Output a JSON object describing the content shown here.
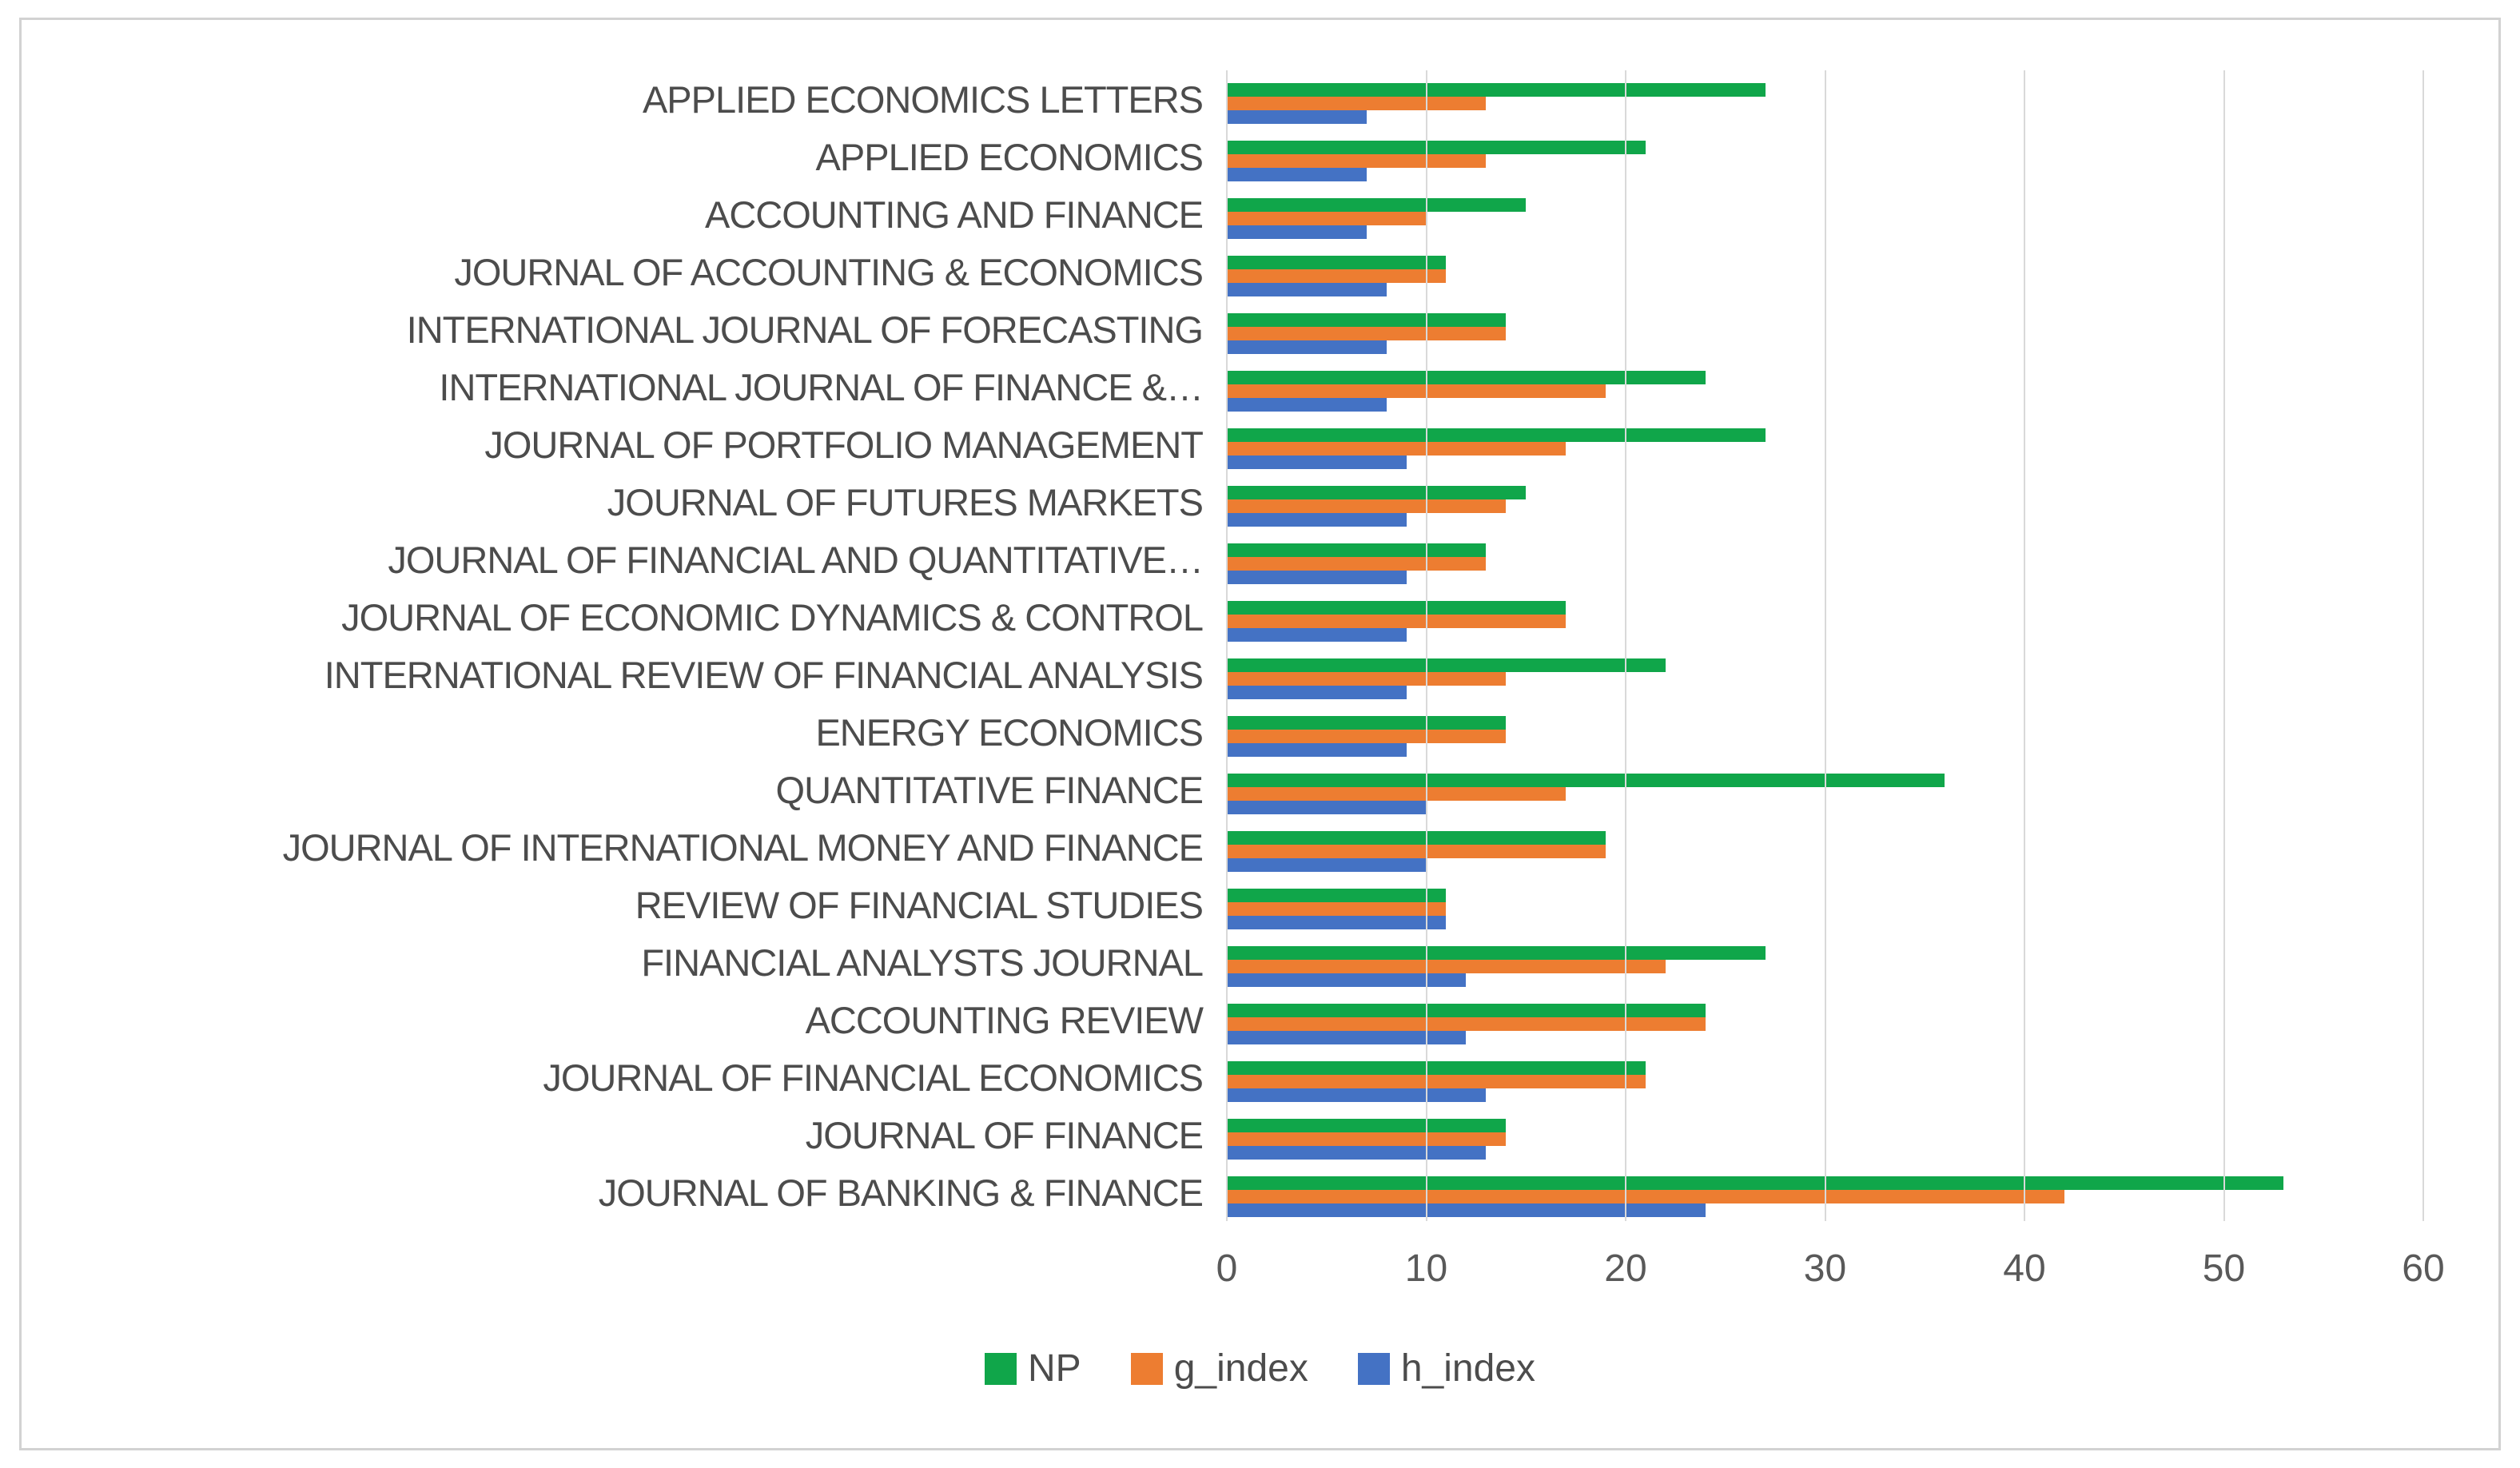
{
  "chart_data": {
    "type": "bar",
    "orientation": "horizontal",
    "title": "",
    "xlabel": "",
    "ylabel": "",
    "xlim": [
      0,
      60
    ],
    "x_ticks": [
      "0",
      "10",
      "20",
      "30",
      "40",
      "50",
      "60"
    ],
    "grid": true,
    "legend_position": "bottom",
    "categories": [
      "APPLIED ECONOMICS LETTERS",
      "APPLIED ECONOMICS",
      "ACCOUNTING AND FINANCE",
      "JOURNAL OF ACCOUNTING & ECONOMICS",
      "INTERNATIONAL JOURNAL OF FORECASTING",
      "INTERNATIONAL JOURNAL OF FINANCE &…",
      "JOURNAL OF PORTFOLIO MANAGEMENT",
      "JOURNAL OF FUTURES MARKETS",
      "JOURNAL OF FINANCIAL AND QUANTITATIVE…",
      "JOURNAL OF ECONOMIC DYNAMICS & CONTROL",
      "INTERNATIONAL REVIEW OF FINANCIAL ANALYSIS",
      "ENERGY ECONOMICS",
      "QUANTITATIVE FINANCE",
      "JOURNAL OF INTERNATIONAL MONEY AND FINANCE",
      "REVIEW OF FINANCIAL STUDIES",
      "FINANCIAL ANALYSTS JOURNAL",
      "ACCOUNTING REVIEW",
      "JOURNAL OF FINANCIAL ECONOMICS",
      "JOURNAL OF FINANCE",
      "JOURNAL OF BANKING & FINANCE"
    ],
    "series": [
      {
        "name": "NP",
        "color": "#10A64A",
        "values": [
          27,
          21,
          15,
          11,
          14,
          24,
          27,
          15,
          13,
          17,
          22,
          14,
          36,
          19,
          11,
          27,
          24,
          21,
          14,
          53
        ]
      },
      {
        "name": "g_index",
        "color": "#ED7D31",
        "values": [
          13,
          13,
          10,
          11,
          14,
          19,
          17,
          14,
          13,
          17,
          14,
          14,
          17,
          19,
          11,
          22,
          24,
          21,
          14,
          42
        ]
      },
      {
        "name": "h_index",
        "color": "#4472C4",
        "values": [
          7,
          7,
          7,
          8,
          8,
          8,
          9,
          9,
          9,
          9,
          9,
          9,
          10,
          10,
          11,
          12,
          12,
          13,
          13,
          24
        ]
      }
    ]
  },
  "style": {
    "grid_color": "#D9D9D9",
    "tick_text_color": "#595959",
    "label_text_color": "#4C4C4C",
    "frame_border_color": "#D2D2D2",
    "background": "#FFFFFF"
  }
}
